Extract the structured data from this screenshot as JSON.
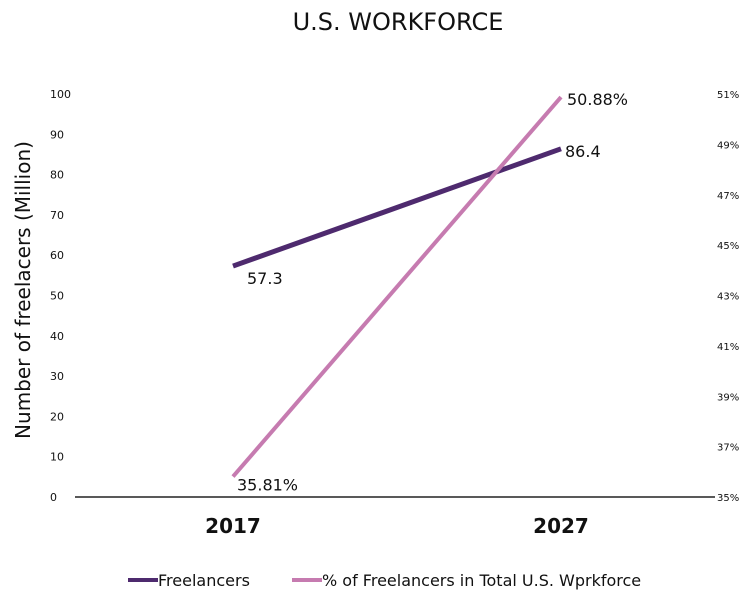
{
  "chart_data": {
    "type": "line",
    "title": "U.S. WORKFORCE",
    "ylabel": "Number of freelacers (Million)",
    "y2label": "",
    "categories": [
      "2017",
      "2027"
    ],
    "ylim": [
      0,
      100
    ],
    "yticks": [
      "0",
      "10",
      "20",
      "30",
      "40",
      "50",
      "60",
      "70",
      "80",
      "90",
      "100"
    ],
    "y2lim": [
      35,
      51
    ],
    "y2ticks": [
      "35%",
      "37%",
      "39%",
      "41%",
      "43%",
      "45%",
      "47%",
      "49%",
      "51%"
    ],
    "grid": false,
    "legend_position": "bottom",
    "series": [
      {
        "name": "Freelancers",
        "axis": "left",
        "values": [
          57.3,
          86.4
        ],
        "labels": [
          "57.3",
          "86.4"
        ],
        "color": "#4e2a6e"
      },
      {
        "name": "% of Freelancers in Total U.S. Wprkforce",
        "axis": "right",
        "values": [
          35.81,
          50.88
        ],
        "labels": [
          "35.81%",
          "50.88%"
        ],
        "color": "#c67bb0"
      }
    ]
  }
}
